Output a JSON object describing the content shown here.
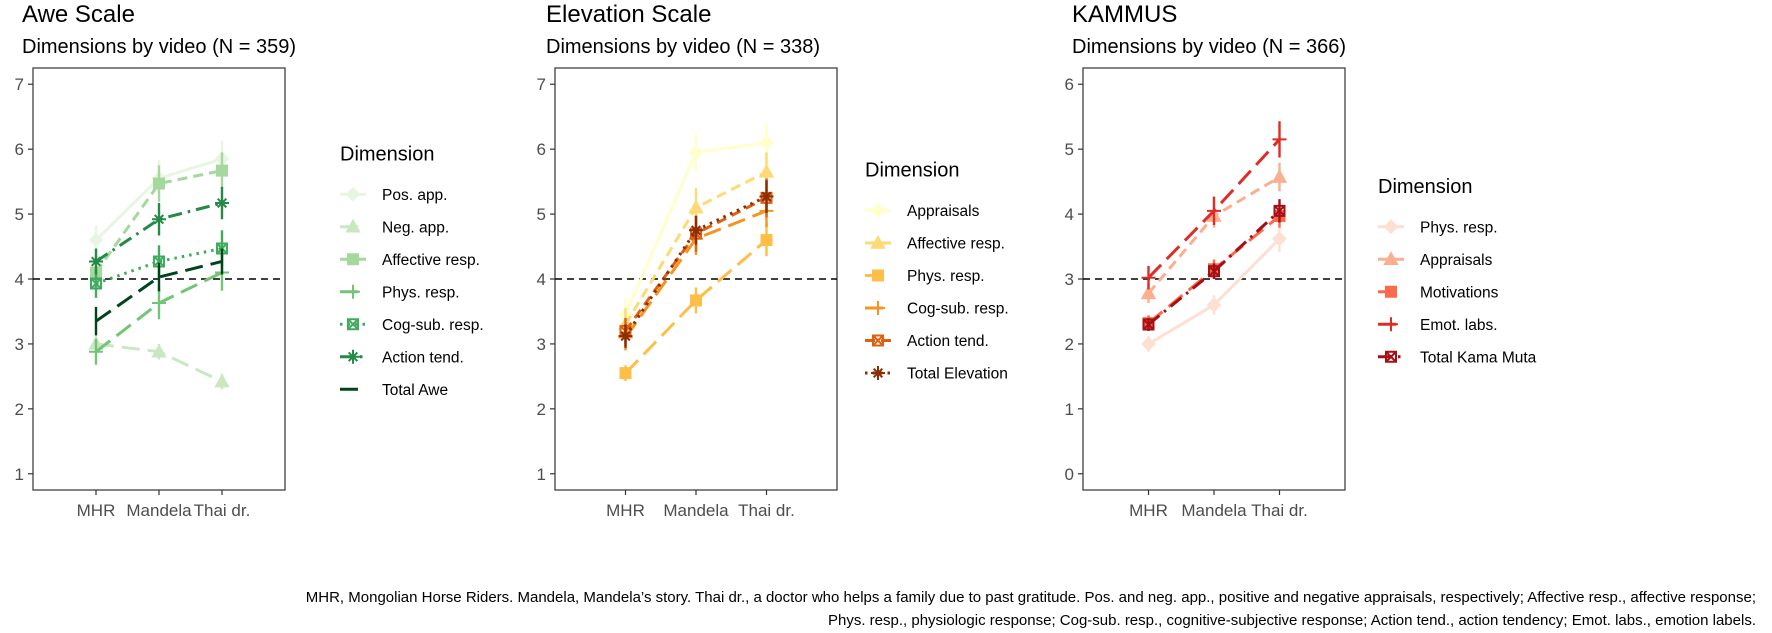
{
  "caption": {
    "line1": "MHR, Mongolian Horse Riders. Mandela, Mandela’s story. Thai dr., a doctor who helps a family due to past gratitude. Pos. and neg. app., positive and negative appraisals, respectively; Affective resp., affective response;",
    "line2": "Phys. resp., physiologic response; Cog-sub. resp., cognitive-subjective response; Action tend., action tendency; Emot. labs., emotion labels."
  },
  "chart_data": [
    {
      "type": "line",
      "title": "Awe Scale",
      "subtitle": "Dimensions by video (N = 359)",
      "categories": [
        "MHR",
        "Mandela",
        "Thai dr."
      ],
      "ylim": [
        0.75,
        7.25
      ],
      "yticks": [
        1,
        2,
        3,
        4,
        5,
        6,
        7
      ],
      "reference_line": 4,
      "legend_title": "Dimension",
      "series": [
        {
          "name": "Pos. app.",
          "values": [
            4.6,
            5.55,
            5.85
          ],
          "err": [
            0.22,
            0.28,
            0.28
          ],
          "color": "#e8f5e3",
          "dash": "solid",
          "marker": "diamond"
        },
        {
          "name": "Neg. app.",
          "values": [
            3.0,
            2.88,
            2.42
          ],
          "err": [
            0.12,
            0.12,
            0.12
          ],
          "color": "#c9e8c2",
          "dash": "longdash",
          "marker": "triangle"
        },
        {
          "name": "Affective resp.",
          "values": [
            4.1,
            5.47,
            5.67
          ],
          "err": [
            0.25,
            0.28,
            0.28
          ],
          "color": "#a5d89d",
          "dash": "dashed",
          "marker": "square"
        },
        {
          "name": "Phys. resp.",
          "values": [
            2.88,
            3.63,
            4.1
          ],
          "err": [
            0.2,
            0.25,
            0.28
          ],
          "color": "#74c476",
          "dash": "longdash",
          "marker": "plus"
        },
        {
          "name": "Cog-sub. resp.",
          "values": [
            3.93,
            4.27,
            4.47
          ],
          "err": [
            0.22,
            0.25,
            0.28
          ],
          "color": "#41ab5d",
          "dash": "dotted",
          "marker": "squarecross"
        },
        {
          "name": "Action tend.",
          "values": [
            4.27,
            4.92,
            5.17
          ],
          "err": [
            0.2,
            0.25,
            0.25
          ],
          "color": "#238b45",
          "dash": "dotdash",
          "marker": "star"
        },
        {
          "name": "Total Awe",
          "values": [
            3.35,
            4.03,
            4.27
          ],
          "err": [
            0.22,
            0.22,
            0.2
          ],
          "color": "#00441b",
          "dash": "longdash",
          "marker": "none"
        }
      ]
    },
    {
      "type": "line",
      "title": "Elevation Scale",
      "subtitle": "Dimensions by video (N = 338)",
      "categories": [
        "MHR",
        "Mandela",
        "Thai dr."
      ],
      "ylim": [
        0.75,
        7.25
      ],
      "yticks": [
        1,
        2,
        3,
        4,
        5,
        6,
        7
      ],
      "reference_line": 4,
      "legend_title": "Dimension",
      "series": [
        {
          "name": "Appraisals",
          "values": [
            3.45,
            5.95,
            6.1
          ],
          "err": [
            0.25,
            0.3,
            0.3
          ],
          "color": "#ffffcc",
          "dash": "solid",
          "marker": "diamond"
        },
        {
          "name": "Affective resp.",
          "values": [
            3.3,
            5.1,
            5.65
          ],
          "err": [
            0.25,
            0.3,
            0.3
          ],
          "color": "#fed976",
          "dash": "dashed",
          "marker": "triangle"
        },
        {
          "name": "Phys. resp.",
          "values": [
            2.55,
            3.67,
            4.6
          ],
          "err": [
            0.12,
            0.2,
            0.25
          ],
          "color": "#fdbf47",
          "dash": "longdash",
          "marker": "square"
        },
        {
          "name": "Cog-sub. resp.",
          "values": [
            3.1,
            4.62,
            5.05
          ],
          "err": [
            0.2,
            0.25,
            0.25
          ],
          "color": "#f7941d",
          "dash": "longdash",
          "marker": "plus"
        },
        {
          "name": "Action tend.",
          "values": [
            3.2,
            4.7,
            5.25
          ],
          "err": [
            0.2,
            0.28,
            0.3
          ],
          "color": "#e06012",
          "dash": "dashed",
          "marker": "squarecross"
        },
        {
          "name": "Total Elevation",
          "values": [
            3.12,
            4.75,
            5.27
          ],
          "err": [
            0.18,
            0.22,
            0.25
          ],
          "color": "#8c2d04",
          "dash": "dotted",
          "marker": "star"
        }
      ]
    },
    {
      "type": "line",
      "title": "KAMMUS",
      "subtitle": "Dimensions by video (N = 366)",
      "categories": [
        "MHR",
        "Mandela",
        "Thai dr."
      ],
      "ylim": [
        -0.25,
        6.25
      ],
      "yticks": [
        0,
        1,
        2,
        3,
        4,
        5,
        6
      ],
      "reference_line": 3,
      "legend_title": "Dimension",
      "series": [
        {
          "name": "Phys. resp.",
          "values": [
            2.0,
            2.6,
            3.62
          ],
          "err": [
            0.12,
            0.15,
            0.2
          ],
          "color": "#fde0d2",
          "dash": "solid",
          "marker": "diamond"
        },
        {
          "name": "Appraisals",
          "values": [
            2.78,
            3.97,
            4.57
          ],
          "err": [
            0.15,
            0.18,
            0.22
          ],
          "color": "#fcae91",
          "dash": "dashed",
          "marker": "triangle"
        },
        {
          "name": "Motivations",
          "values": [
            2.32,
            3.15,
            3.97
          ],
          "err": [
            0.12,
            0.15,
            0.18
          ],
          "color": "#fb6a4a",
          "dash": "longdash",
          "marker": "square"
        },
        {
          "name": "Emot. labs.",
          "values": [
            3.02,
            4.05,
            5.15
          ],
          "err": [
            0.18,
            0.22,
            0.28
          ],
          "color": "#de2d26",
          "dash": "longdash",
          "marker": "plus"
        },
        {
          "name": "Total Kama Muta",
          "values": [
            2.3,
            3.12,
            4.05
          ],
          "err": [
            0.1,
            0.12,
            0.18
          ],
          "color": "#a50f15",
          "dash": "dotdash",
          "marker": "squarecross"
        }
      ]
    }
  ]
}
